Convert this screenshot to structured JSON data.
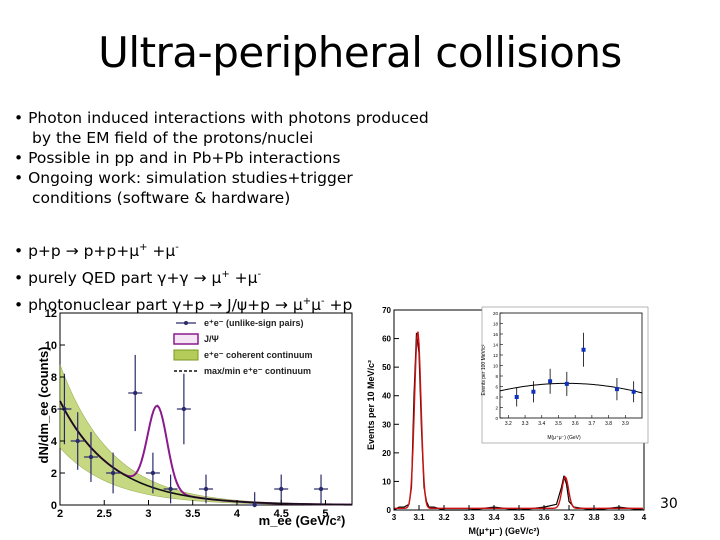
{
  "slide": {
    "title": "Ultra-peripheral collisions",
    "bullets": [
      {
        "line1": "• Photon induced interactions with photons produced",
        "line2": "by the EM field of the protons/nuclei"
      },
      {
        "line1": "• Possible in pp and in Pb+Pb interactions"
      },
      {
        "line1": "• Ongoing work: simulation studies+trigger",
        "line2": "conditions (software & hardware)"
      }
    ],
    "processes": [
      {
        "text": "• p+p → p+p+μ",
        "sup1": "+",
        "mid": " +μ",
        "sup2": "-",
        "tail": ""
      },
      {
        "text": "• purely QED part γ+γ → μ",
        "sup1": "+",
        "mid": " +μ",
        "sup2": "-",
        "tail": ""
      },
      {
        "text": "• photonuclear part γ+p → J/ψ+p → μ",
        "sup1": "+",
        "mid": "μ",
        "sup2": "-",
        "tail": " +p"
      }
    ],
    "page_number": "30"
  },
  "chart_data": [
    {
      "type": "scatter",
      "xlabel": "m_ee (GeV/c²)",
      "ylabel": "dN/dm_ee (counts)",
      "xlim": [
        2.0,
        5.3
      ],
      "ylim": [
        0,
        12
      ],
      "x_ticks": [
        "2",
        "2.5",
        "3",
        "3.5",
        "4",
        "4.5",
        "5"
      ],
      "y_ticks": [
        "0",
        "2",
        "4",
        "6",
        "8",
        "10",
        "12"
      ],
      "legend": {
        "placement": "top-right",
        "entries": [
          "e⁺e⁻ (unlike-sign pairs)",
          "J/Ψ",
          "e⁺e⁻ coherent continuum",
          "max/min e⁺e⁻ continuum"
        ]
      },
      "series": [
        {
          "name": "e⁺e⁻ (unlike-sign pairs)",
          "x": [
            2.05,
            2.2,
            2.35,
            2.6,
            2.85,
            3.05,
            3.25,
            3.4,
            3.65,
            4.2,
            4.5,
            4.95
          ],
          "y": [
            6,
            4,
            3,
            2,
            7,
            2,
            1,
            6,
            1,
            0,
            1,
            1
          ]
        }
      ]
    },
    {
      "type": "line",
      "xlabel": "M(μ⁺μ⁻) (GeV/c²)",
      "ylabel": "Events per 10 MeV/c²",
      "xlim": [
        3.0,
        4.0
      ],
      "ylim": [
        0,
        70
      ],
      "x_ticks": [
        "3",
        "3.1",
        "3.2",
        "3.3",
        "3.4",
        "3.5",
        "3.6",
        "3.7",
        "3.8",
        "3.9",
        "4"
      ],
      "y_ticks": [
        "0",
        "10",
        "20",
        "30",
        "40",
        "50",
        "60",
        "70"
      ],
      "series": [
        {
          "name": "",
          "x": [
            3.02,
            3.04,
            3.06,
            3.07,
            3.08,
            3.09,
            3.1,
            3.11,
            3.12,
            3.13,
            3.14,
            3.16,
            3.2,
            3.3,
            3.4,
            3.5,
            3.6,
            3.65,
            3.67,
            3.68,
            3.69,
            3.7,
            3.72,
            3.8,
            3.9,
            4.0
          ],
          "y": [
            1,
            1,
            2,
            8,
            40,
            62,
            55,
            28,
            8,
            3,
            1,
            1,
            0,
            0,
            1,
            0,
            1,
            2,
            8,
            12,
            9,
            3,
            1,
            0,
            1,
            0
          ]
        }
      ]
    },
    {
      "type": "scatter",
      "xlabel": "M(μ⁺μ⁻) (GeV)",
      "ylabel": "Events per 100 MeV/c²",
      "xlim": [
        3.15,
        4.0
      ],
      "ylim": [
        0,
        20
      ],
      "x_ticks": [
        "3.2",
        "3.3",
        "3.4",
        "3.5",
        "3.6",
        "3.7",
        "3.8",
        "3.9"
      ],
      "y_ticks": [
        "0",
        "2",
        "4",
        "6",
        "8",
        "10",
        "12",
        "14",
        "16",
        "18",
        "20"
      ],
      "series": [
        {
          "name": "",
          "x": [
            3.25,
            3.35,
            3.45,
            3.55,
            3.65,
            3.85,
            3.95
          ],
          "y": [
            4,
            5,
            7,
            6.5,
            13,
            5.5,
            5
          ]
        }
      ]
    }
  ]
}
